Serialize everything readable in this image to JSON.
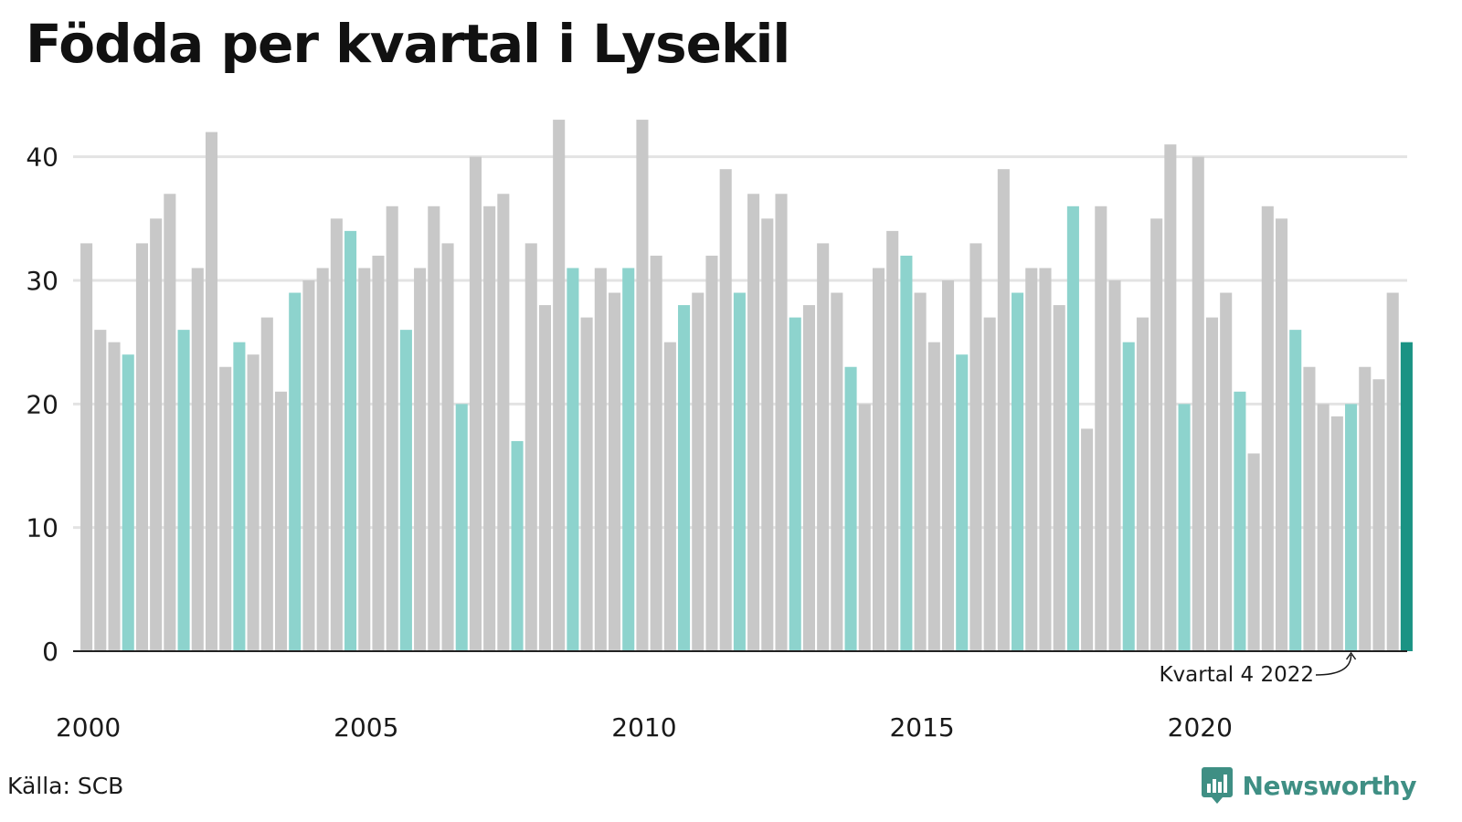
{
  "title": "Födda per kvartal i Lysekil",
  "source": "Källa: SCB",
  "brand": "Newsworthy",
  "colors": {
    "regular": "#c8c8c8",
    "q4": "#8dd3cd",
    "latest": "#1a9384",
    "grid": "#e3e3e3",
    "axis": "#222222"
  },
  "chart_data": {
    "type": "bar",
    "title": "Födda per kvartal i Lysekil",
    "xlabel": "",
    "ylabel": "",
    "ylim": [
      0,
      45
    ],
    "yticks": [
      0,
      10,
      20,
      30,
      40
    ],
    "grid": true,
    "x_ticks": [
      "2000",
      "2005",
      "2010",
      "2015",
      "2020"
    ],
    "annotation": "Kvartal 4 2022",
    "categories": [
      "2000 Q1",
      "2000 Q2",
      "2000 Q3",
      "2000 Q4",
      "2001 Q1",
      "2001 Q2",
      "2001 Q3",
      "2001 Q4",
      "2002 Q1",
      "2002 Q2",
      "2002 Q3",
      "2002 Q4",
      "2003 Q1",
      "2003 Q2",
      "2003 Q3",
      "2003 Q4",
      "2004 Q1",
      "2004 Q2",
      "2004 Q3",
      "2004 Q4",
      "2005 Q1",
      "2005 Q2",
      "2005 Q3",
      "2005 Q4",
      "2006 Q1",
      "2006 Q2",
      "2006 Q3",
      "2006 Q4",
      "2007 Q1",
      "2007 Q2",
      "2007 Q3",
      "2007 Q4",
      "2008 Q1",
      "2008 Q2",
      "2008 Q3",
      "2008 Q4",
      "2009 Q1",
      "2009 Q2",
      "2009 Q3",
      "2009 Q4",
      "2010 Q1",
      "2010 Q2",
      "2010 Q3",
      "2010 Q4",
      "2011 Q1",
      "2011 Q2",
      "2011 Q3",
      "2011 Q4",
      "2012 Q1",
      "2012 Q2",
      "2012 Q3",
      "2012 Q4",
      "2013 Q1",
      "2013 Q2",
      "2013 Q3",
      "2013 Q4",
      "2014 Q1",
      "2014 Q2",
      "2014 Q3",
      "2014 Q4",
      "2015 Q1",
      "2015 Q2",
      "2015 Q3",
      "2015 Q4",
      "2016 Q1",
      "2016 Q2",
      "2016 Q3",
      "2016 Q4",
      "2017 Q1",
      "2017 Q2",
      "2017 Q3",
      "2017 Q4",
      "2018 Q1",
      "2018 Q2",
      "2018 Q3",
      "2018 Q4",
      "2019 Q1",
      "2019 Q2",
      "2019 Q3",
      "2019 Q4",
      "2020 Q1",
      "2020 Q2",
      "2020 Q3",
      "2020 Q4",
      "2021 Q1",
      "2021 Q2",
      "2021 Q3",
      "2021 Q4",
      "2022 Q1",
      "2022 Q2",
      "2022 Q3",
      "2022 Q4",
      "2023 Q1",
      "2023 Q2",
      "2023 Q3",
      "2023 Q4"
    ],
    "values": [
      33,
      26,
      25,
      24,
      33,
      35,
      37,
      26,
      31,
      42,
      23,
      25,
      24,
      27,
      21,
      29,
      30,
      31,
      35,
      34,
      31,
      32,
      36,
      26,
      31,
      36,
      33,
      20,
      40,
      36,
      37,
      17,
      33,
      28,
      43,
      31,
      27,
      31,
      29,
      31,
      43,
      32,
      25,
      28,
      29,
      32,
      39,
      29,
      37,
      35,
      37,
      27,
      28,
      33,
      29,
      23,
      20,
      31,
      34,
      32,
      29,
      25,
      30,
      24,
      33,
      27,
      39,
      29,
      31,
      31,
      28,
      36,
      18,
      36,
      30,
      25,
      27,
      35,
      41,
      20,
      40,
      27,
      29,
      21,
      16,
      36,
      35,
      26,
      23,
      20,
      19,
      20,
      23,
      22,
      29,
      25
    ]
  }
}
